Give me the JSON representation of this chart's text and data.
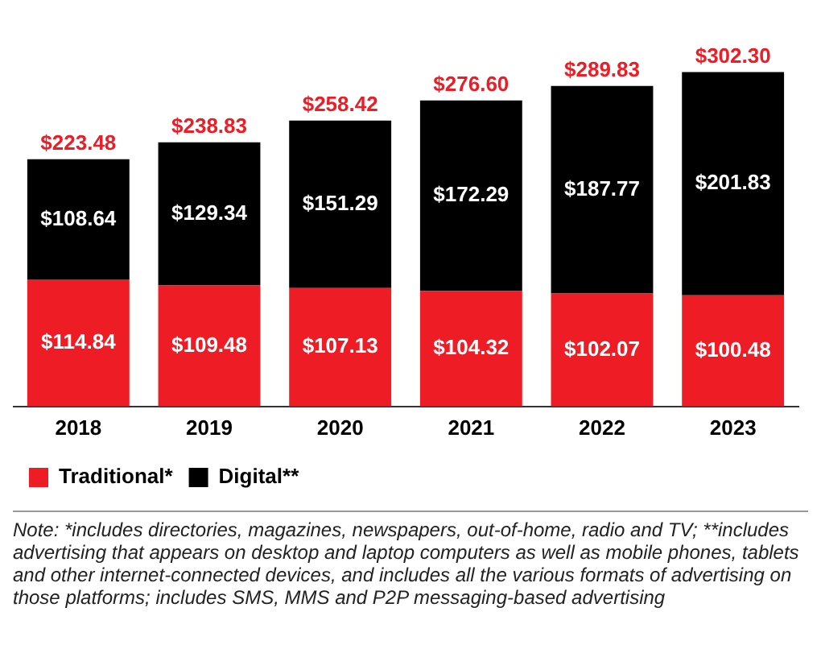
{
  "chart_data": {
    "type": "bar",
    "stacked": true,
    "categories": [
      "2018",
      "2019",
      "2020",
      "2021",
      "2022",
      "2023"
    ],
    "series": [
      {
        "name": "Traditional*",
        "color": "#ee1c25",
        "values": [
          114.84,
          109.48,
          107.13,
          104.32,
          102.07,
          100.48
        ],
        "value_labels": [
          "$114.84",
          "$109.48",
          "$107.13",
          "$104.32",
          "$102.07",
          "$100.48"
        ]
      },
      {
        "name": "Digital**",
        "color": "#000000",
        "values": [
          108.64,
          129.34,
          151.29,
          172.29,
          187.77,
          201.83
        ],
        "value_labels": [
          "$108.64",
          "$129.34",
          "$151.29",
          "$172.29",
          "$187.77",
          "$201.83"
        ]
      }
    ],
    "totals": [
      "$223.48",
      "$238.83",
      "$258.42",
      "$276.60",
      "$289.83",
      "$302.30"
    ],
    "legend": "bottom left",
    "grid": false,
    "annotations": [
      "Note: *includes directories, magazines, newspapers, out-of-home, radio and TV; **includes advertising that appears on desktop and laptop computers as well as mobile phones, tablets and other internet-connected devices, and includes all the various formats of advertising on those platforms; includes SMS, MMS and P2P messaging-based advertising"
    ]
  }
}
